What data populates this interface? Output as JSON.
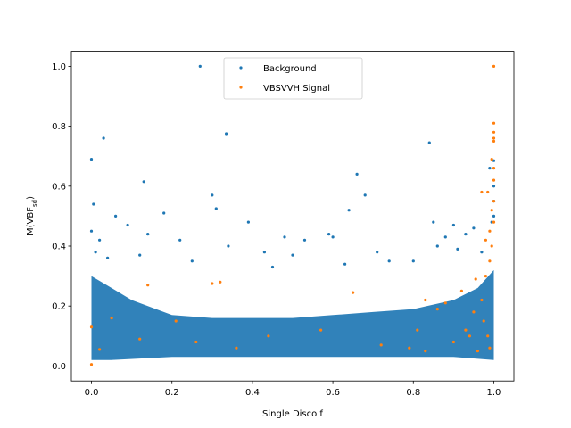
{
  "chart_data": {
    "type": "scatter",
    "xlabel": "Single Disco f",
    "ylabel": "M(VBF_sd)",
    "xlim": [
      -0.05,
      1.05
    ],
    "ylim": [
      -0.05,
      1.05
    ],
    "xticks": [
      "0.0",
      "0.2",
      "0.4",
      "0.6",
      "0.8",
      "1.0"
    ],
    "yticks": [
      "0.0",
      "0.2",
      "0.4",
      "0.6",
      "0.8",
      "1.0"
    ],
    "legend_position": "top-center",
    "grid": false,
    "series": [
      {
        "name": "Background",
        "color": "#1f77b4",
        "points": [
          [
            0.27,
            1.0
          ],
          [
            0.03,
            0.76
          ],
          [
            0.335,
            0.775
          ],
          [
            0.84,
            0.745
          ],
          [
            0.0,
            0.69
          ],
          [
            0.13,
            0.615
          ],
          [
            0.3,
            0.57
          ],
          [
            0.31,
            0.525
          ],
          [
            0.66,
            0.64
          ],
          [
            0.68,
            0.57
          ],
          [
            0.005,
            0.54
          ],
          [
            0.18,
            0.51
          ],
          [
            0.64,
            0.52
          ],
          [
            0.99,
            0.66
          ],
          [
            0.0,
            0.45
          ],
          [
            0.02,
            0.42
          ],
          [
            0.06,
            0.5
          ],
          [
            0.09,
            0.47
          ],
          [
            0.14,
            0.44
          ],
          [
            0.22,
            0.42
          ],
          [
            0.39,
            0.48
          ],
          [
            0.48,
            0.43
          ],
          [
            0.53,
            0.42
          ],
          [
            0.59,
            0.44
          ],
          [
            0.6,
            0.43
          ],
          [
            0.85,
            0.48
          ],
          [
            0.88,
            0.43
          ],
          [
            0.9,
            0.47
          ],
          [
            0.93,
            0.44
          ],
          [
            0.95,
            0.46
          ],
          [
            1.0,
            0.685
          ],
          [
            1.0,
            0.6
          ],
          [
            1.0,
            0.55
          ],
          [
            1.0,
            0.5
          ],
          [
            0.995,
            0.48
          ],
          [
            0.34,
            0.4
          ],
          [
            0.43,
            0.38
          ],
          [
            0.5,
            0.37
          ],
          [
            0.71,
            0.38
          ],
          [
            0.74,
            0.35
          ],
          [
            0.12,
            0.37
          ],
          [
            0.25,
            0.35
          ],
          [
            0.45,
            0.33
          ],
          [
            0.63,
            0.34
          ],
          [
            0.8,
            0.35
          ],
          [
            0.86,
            0.4
          ],
          [
            0.91,
            0.39
          ],
          [
            0.97,
            0.38
          ],
          [
            0.01,
            0.38
          ],
          [
            0.04,
            0.36
          ]
        ]
      },
      {
        "name": "VBSVVH Signal",
        "color": "#ff7f0e",
        "points": [
          [
            1.0,
            1.0
          ],
          [
            1.0,
            0.81
          ],
          [
            1.0,
            0.78
          ],
          [
            1.0,
            0.76
          ],
          [
            1.0,
            0.75
          ],
          [
            0.995,
            0.69
          ],
          [
            1.0,
            0.66
          ],
          [
            1.0,
            0.62
          ],
          [
            0.985,
            0.58
          ],
          [
            0.97,
            0.58
          ],
          [
            1.0,
            0.55
          ],
          [
            0.995,
            0.52
          ],
          [
            1.0,
            0.48
          ],
          [
            0.99,
            0.45
          ],
          [
            0.98,
            0.42
          ],
          [
            0.3,
            0.275
          ],
          [
            0.32,
            0.28
          ],
          [
            0.14,
            0.27
          ],
          [
            0.65,
            0.245
          ],
          [
            0.83,
            0.22
          ],
          [
            0.86,
            0.19
          ],
          [
            0.88,
            0.21
          ],
          [
            0.92,
            0.25
          ],
          [
            0.05,
            0.16
          ],
          [
            0.12,
            0.09
          ],
          [
            0.26,
            0.08
          ],
          [
            0.36,
            0.06
          ],
          [
            0.44,
            0.1
          ],
          [
            0.72,
            0.07
          ],
          [
            0.79,
            0.06
          ],
          [
            0.81,
            0.12
          ],
          [
            0.83,
            0.05
          ],
          [
            0.0,
            0.13
          ],
          [
            0.0,
            0.005
          ],
          [
            0.02,
            0.055
          ],
          [
            0.9,
            0.08
          ],
          [
            0.93,
            0.12
          ],
          [
            0.95,
            0.18
          ],
          [
            0.97,
            0.22
          ],
          [
            0.98,
            0.3
          ],
          [
            0.99,
            0.35
          ],
          [
            0.995,
            0.4
          ],
          [
            0.975,
            0.15
          ],
          [
            0.985,
            0.1
          ],
          [
            0.99,
            0.06
          ],
          [
            0.96,
            0.05
          ],
          [
            0.94,
            0.1
          ],
          [
            0.955,
            0.29
          ],
          [
            0.21,
            0.15
          ],
          [
            0.57,
            0.12
          ]
        ]
      }
    ]
  }
}
